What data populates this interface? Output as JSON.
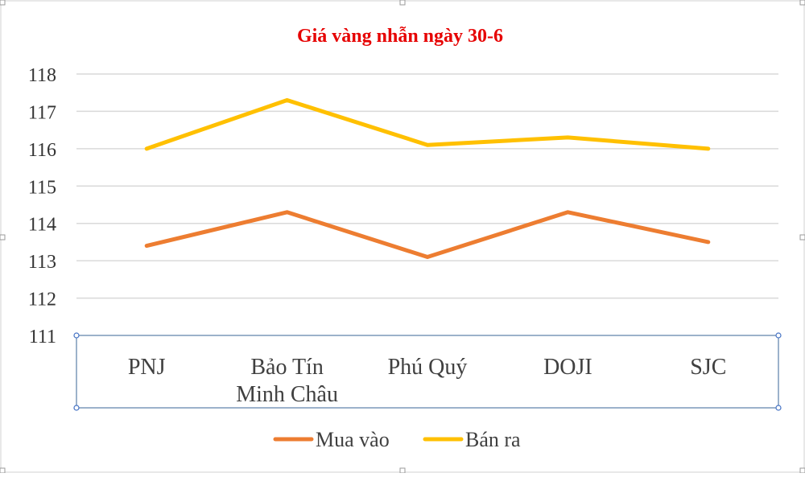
{
  "chart_data": {
    "type": "line",
    "title": "Giá vàng nhẫn ngày 30-6",
    "categories": [
      "PNJ",
      "Bảo Tín Minh Châu",
      "Phú Quý",
      "DOJI",
      "SJC"
    ],
    "category_lines": [
      [
        "PNJ"
      ],
      [
        "Bảo Tín",
        "Minh Châu"
      ],
      [
        "Phú Quý"
      ],
      [
        "DOJI"
      ],
      [
        "SJC"
      ]
    ],
    "yticks": [
      "118",
      "117",
      "116",
      "115",
      "114",
      "113",
      "112",
      "111"
    ],
    "ylim": [
      111,
      118
    ],
    "grid": true,
    "legend_position": "bottom",
    "series": [
      {
        "name": "Mua vào",
        "color": "#ed7d31",
        "values": [
          113.4,
          114.3,
          113.1,
          114.3,
          113.5
        ]
      },
      {
        "name": "Bán ra",
        "color": "#ffc000",
        "values": [
          116.0,
          117.3,
          116.1,
          116.3,
          116.0
        ]
      }
    ]
  }
}
